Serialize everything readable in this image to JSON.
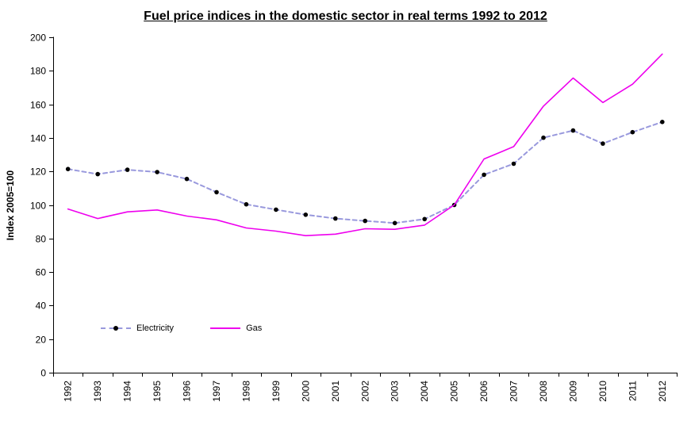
{
  "chart_data": {
    "type": "line",
    "title": "Fuel price indices in the domestic sector in real terms 1992 to 2012",
    "xlabel": "",
    "ylabel": "Index 2005=100",
    "ylim": [
      0,
      200
    ],
    "ytick_step": 20,
    "grid": false,
    "background_color": "#ffffff",
    "axis_color": "#000000",
    "categories": [
      "1992",
      "1993",
      "1994",
      "1995",
      "1996",
      "1997",
      "1998",
      "1999",
      "2000",
      "2001",
      "2002",
      "2003",
      "2004",
      "2005",
      "2006",
      "2007",
      "2008",
      "2009",
      "2010",
      "2011",
      "2012"
    ],
    "series": [
      {
        "name": "Electricity",
        "color": "#9999DD",
        "line_style": "dashed",
        "marker": "circle",
        "marker_color": "#000000",
        "values": [
          121.4,
          118.4,
          121.0,
          119.6,
          115.5,
          107.6,
          100.4,
          97.2,
          94.2,
          91.9,
          90.5,
          89.2,
          91.6,
          100.0,
          118.0,
          124.6,
          140.1,
          144.4,
          136.6,
          143.4,
          149.5
        ]
      },
      {
        "name": "Gas",
        "color": "#EE00EE",
        "line_style": "solid",
        "marker": "none",
        "marker_color": "",
        "values": [
          97.6,
          91.9,
          95.9,
          97.0,
          93.4,
          91.1,
          86.3,
          84.4,
          81.7,
          82.6,
          85.8,
          85.5,
          88.0,
          100.0,
          127.4,
          134.8,
          158.9,
          175.7,
          161.1,
          172.0,
          190.0
        ]
      }
    ],
    "legend_position": "inside-bottom-left"
  }
}
